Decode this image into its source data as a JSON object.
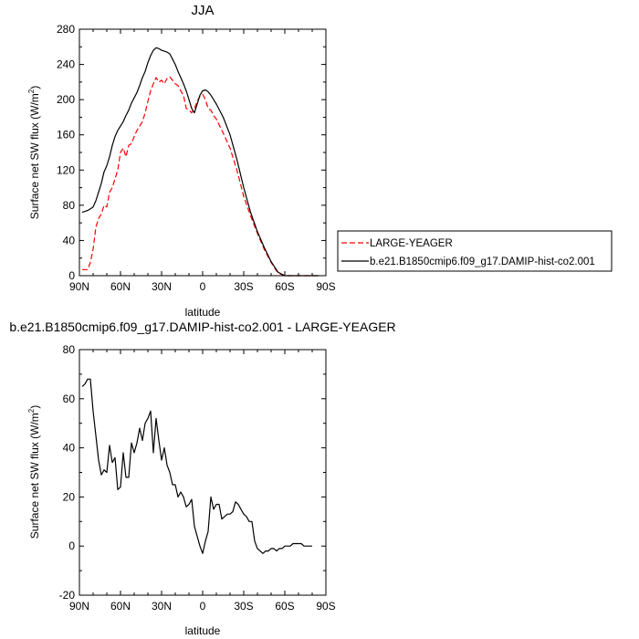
{
  "chart_data": [
    {
      "type": "line",
      "title": "JJA",
      "xlabel": "latitude",
      "ylabel_main": "Surface net SW flux (W/m",
      "ylabel_sup": "2",
      "ylabel_tail": ")",
      "xlim": [
        90,
        -90
      ],
      "ylim": [
        0,
        280
      ],
      "x_ticks": [
        90,
        60,
        30,
        0,
        -30,
        -60,
        -90
      ],
      "x_tick_labels": [
        "90N",
        "60N",
        "30N",
        "0",
        "30S",
        "60S",
        "90S"
      ],
      "y_ticks": [
        0,
        40,
        80,
        120,
        160,
        200,
        240,
        280
      ],
      "y_tick_labels": [
        "0",
        "40",
        "80",
        "120",
        "160",
        "200",
        "240",
        "280"
      ],
      "legend_placement": "outside-right",
      "series": [
        {
          "name": "LARGE-YEAGER",
          "color": "#ff0000",
          "dashed": true,
          "x": [
            88,
            84,
            82,
            80,
            78,
            76,
            74,
            72,
            70,
            68,
            66,
            64,
            62,
            60,
            58,
            56,
            54,
            52,
            50,
            48,
            46,
            44,
            42,
            40,
            38,
            36,
            34,
            32,
            30,
            28,
            26,
            24,
            22,
            20,
            18,
            16,
            14,
            12,
            10,
            8,
            6,
            4,
            2,
            0,
            -2,
            -4,
            -6,
            -8,
            -10,
            -15,
            -20,
            -25,
            -30,
            -35,
            -40,
            -45,
            -50,
            -55,
            -60,
            -65,
            -70,
            -75,
            -80,
            -85
          ],
          "y": [
            7,
            7,
            15,
            30,
            55,
            65,
            70,
            80,
            78,
            95,
            100,
            110,
            120,
            140,
            145,
            135,
            148,
            150,
            158,
            165,
            170,
            175,
            185,
            198,
            210,
            218,
            225,
            220,
            222,
            218,
            224,
            226,
            222,
            218,
            216,
            210,
            205,
            190,
            188,
            185,
            190,
            198,
            204,
            206,
            200,
            190,
            188,
            182,
            178,
            162,
            145,
            120,
            90,
            68,
            48,
            30,
            15,
            3,
            0,
            0,
            0,
            0,
            0,
            0
          ]
        },
        {
          "name": "b.e21.B1850cmip6.f09_g17.DAMIP-hist-co2.001",
          "color": "#000000",
          "dashed": false,
          "x": [
            88,
            84,
            82,
            80,
            78,
            76,
            74,
            72,
            70,
            68,
            66,
            64,
            62,
            60,
            58,
            56,
            54,
            52,
            50,
            48,
            46,
            44,
            42,
            40,
            38,
            36,
            34,
            32,
            30,
            28,
            26,
            24,
            22,
            20,
            18,
            16,
            14,
            12,
            10,
            8,
            6,
            4,
            2,
            0,
            -2,
            -4,
            -6,
            -8,
            -10,
            -15,
            -20,
            -25,
            -30,
            -35,
            -40,
            -45,
            -50,
            -55,
            -60,
            -65,
            -70,
            -75,
            -80,
            -85
          ],
          "y": [
            72,
            74,
            76,
            78,
            85,
            95,
            105,
            118,
            125,
            135,
            148,
            158,
            165,
            170,
            175,
            182,
            188,
            196,
            202,
            208,
            216,
            225,
            232,
            242,
            250,
            256,
            259,
            258,
            256,
            255,
            254,
            252,
            246,
            240,
            232,
            225,
            218,
            210,
            200,
            190,
            185,
            195,
            205,
            210,
            211,
            209,
            205,
            200,
            195,
            180,
            160,
            132,
            100,
            72,
            50,
            32,
            16,
            4,
            0,
            0,
            0,
            0,
            0,
            0
          ]
        }
      ]
    },
    {
      "type": "line",
      "title": "b.e21.B1850cmip6.f09_g17.DAMIP-hist-co2.001 - LARGE-YEAGER",
      "xlabel": "latitude",
      "ylabel_main": "Surface net SW flux (W/m",
      "ylabel_sup": "2",
      "ylabel_tail": ")",
      "xlim": [
        90,
        -90
      ],
      "ylim": [
        -20,
        80
      ],
      "x_ticks": [
        90,
        60,
        30,
        0,
        -30,
        -60,
        -90
      ],
      "x_tick_labels": [
        "90N",
        "60N",
        "30N",
        "0",
        "30S",
        "60S",
        "90S"
      ],
      "y_ticks": [
        -20,
        0,
        20,
        40,
        60,
        80
      ],
      "y_tick_labels": [
        "-20",
        "0",
        "20",
        "40",
        "60",
        "80"
      ],
      "series": [
        {
          "color": "#000000",
          "x": [
            88,
            86,
            84,
            82,
            80,
            78,
            76,
            74,
            72,
            70,
            68,
            66,
            64,
            62,
            60,
            58,
            56,
            54,
            52,
            50,
            48,
            46,
            44,
            42,
            40,
            38,
            36,
            34,
            32,
            30,
            28,
            26,
            24,
            22,
            20,
            18,
            16,
            14,
            12,
            10,
            8,
            6,
            4,
            2,
            0,
            -2,
            -4,
            -6,
            -8,
            -10,
            -12,
            -14,
            -16,
            -18,
            -20,
            -22,
            -24,
            -26,
            -28,
            -30,
            -32,
            -34,
            -36,
            -38,
            -40,
            -42,
            -44,
            -46,
            -48,
            -50,
            -52,
            -54,
            -56,
            -58,
            -60,
            -62,
            -64,
            -66,
            -68,
            -70,
            -72,
            -74,
            -76,
            -78,
            -80
          ],
          "y": [
            65,
            66,
            68,
            68,
            55,
            45,
            35,
            29,
            31,
            30,
            41,
            34,
            36,
            23,
            24,
            38,
            28,
            28,
            42,
            38,
            42,
            48,
            43,
            50,
            52,
            55,
            38,
            52,
            43,
            35,
            40,
            33,
            30,
            25,
            25,
            20,
            22,
            20,
            16,
            17,
            19,
            8,
            4,
            0,
            -3,
            2,
            6,
            20,
            15,
            17,
            17,
            11,
            12,
            13,
            13,
            14,
            18,
            17,
            15,
            13,
            12,
            10,
            10,
            2,
            -1,
            -2,
            -3,
            -2,
            -2,
            -1,
            -1,
            -2,
            -1,
            -1,
            0,
            0,
            0,
            1,
            1,
            1,
            1,
            0,
            0,
            0,
            0
          ]
        }
      ]
    }
  ]
}
